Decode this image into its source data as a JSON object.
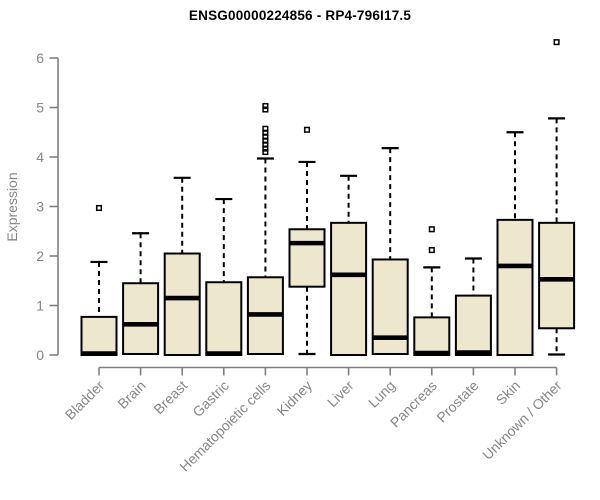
{
  "page": {
    "background": "#ffffff"
  },
  "chart_data": {
    "type": "boxplot",
    "title": "ENSG00000224856 - RP4-796I17.5",
    "ylabel": "Expression",
    "xlabel": "",
    "ylim": [
      0,
      6
    ],
    "yticks": [
      0,
      1,
      2,
      3,
      4,
      5,
      6
    ],
    "grid": false,
    "legend": "none",
    "categories": [
      "Bladder",
      "Brain",
      "Breast",
      "Gastric",
      "Hematopoietic cells",
      "Kidney",
      "Liver",
      "Lung",
      "Pancreas",
      "Prostate",
      "Skin",
      "Unknown / Other"
    ],
    "series": [
      {
        "name": "Bladder",
        "whisker_low": 0,
        "q1": 0,
        "median": 0.03,
        "q3": 0.77,
        "whisker_high": 1.88,
        "outliers": [
          2.97
        ]
      },
      {
        "name": "Brain",
        "whisker_low": 0,
        "q1": 0.02,
        "median": 0.62,
        "q3": 1.45,
        "whisker_high": 2.46,
        "outliers": []
      },
      {
        "name": "Breast",
        "whisker_low": 0,
        "q1": 0,
        "median": 1.15,
        "q3": 2.05,
        "whisker_high": 3.58,
        "outliers": []
      },
      {
        "name": "Gastric",
        "whisker_low": 0,
        "q1": 0,
        "median": 0.03,
        "q3": 1.47,
        "whisker_high": 3.15,
        "outliers": []
      },
      {
        "name": "Hematopoietic cells",
        "whisker_low": 0,
        "q1": 0.02,
        "median": 0.82,
        "q3": 1.57,
        "whisker_high": 3.97,
        "outliers": [
          5.03,
          4.96,
          4.57,
          4.49,
          4.41,
          4.33,
          4.25,
          4.17,
          4.1
        ]
      },
      {
        "name": "Kidney",
        "whisker_low": 0.02,
        "q1": 1.38,
        "median": 2.26,
        "q3": 2.54,
        "whisker_high": 3.9,
        "outliers": [
          4.55
        ]
      },
      {
        "name": "Liver",
        "whisker_low": 0,
        "q1": 0,
        "median": 1.62,
        "q3": 2.67,
        "whisker_high": 3.62,
        "outliers": []
      },
      {
        "name": "Lung",
        "whisker_low": 0,
        "q1": 0.02,
        "median": 0.35,
        "q3": 1.93,
        "whisker_high": 4.18,
        "outliers": []
      },
      {
        "name": "Pancreas",
        "whisker_low": 0,
        "q1": 0,
        "median": 0.04,
        "q3": 0.76,
        "whisker_high": 1.77,
        "outliers": [
          2.54,
          2.12
        ]
      },
      {
        "name": "Prostate",
        "whisker_low": 0,
        "q1": 0,
        "median": 0.05,
        "q3": 1.2,
        "whisker_high": 1.95,
        "outliers": []
      },
      {
        "name": "Skin",
        "whisker_low": 0,
        "q1": 0,
        "median": 1.8,
        "q3": 2.73,
        "whisker_high": 4.5,
        "outliers": []
      },
      {
        "name": "Unknown / Other",
        "whisker_low": 0.01,
        "q1": 0.54,
        "median": 1.53,
        "q3": 2.67,
        "whisker_high": 4.78,
        "outliers": [
          6.32
        ]
      }
    ],
    "colors": {
      "box_fill": "#EDE8CD",
      "box_border": "#000000",
      "median": "#000000",
      "whisker": "#000000",
      "outlier": "#000000",
      "axis": "#808080",
      "tick_label": "#878787",
      "title": "#000000"
    }
  }
}
